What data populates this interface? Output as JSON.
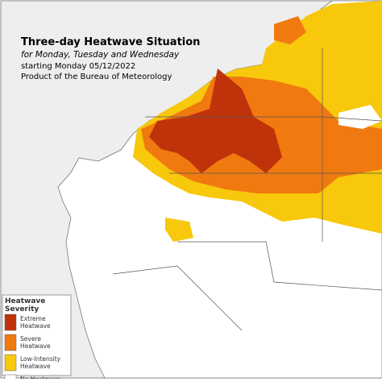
{
  "header": {
    "title": "Three-day Heatwave Situation",
    "subtitle": "for Monday, Tuesday and Wednesday",
    "date_line": "starting Monday 05/12/2022",
    "credit": "Product of the Bureau of Meteorology"
  },
  "legend": {
    "title": [
      "Heatwave",
      "Severity"
    ],
    "items": [
      {
        "label": [
          "Extreme",
          "Heatwave"
        ],
        "color": "#c0330a"
      },
      {
        "label": [
          "Severe",
          "Heatwave"
        ],
        "color": "#f07a10"
      },
      {
        "label": [
          "Low-Intensity",
          "Heatwave"
        ],
        "color": "#f7c80c"
      },
      {
        "label": [
          "No Heatwave"
        ],
        "color": "#ffffff"
      }
    ]
  }
}
